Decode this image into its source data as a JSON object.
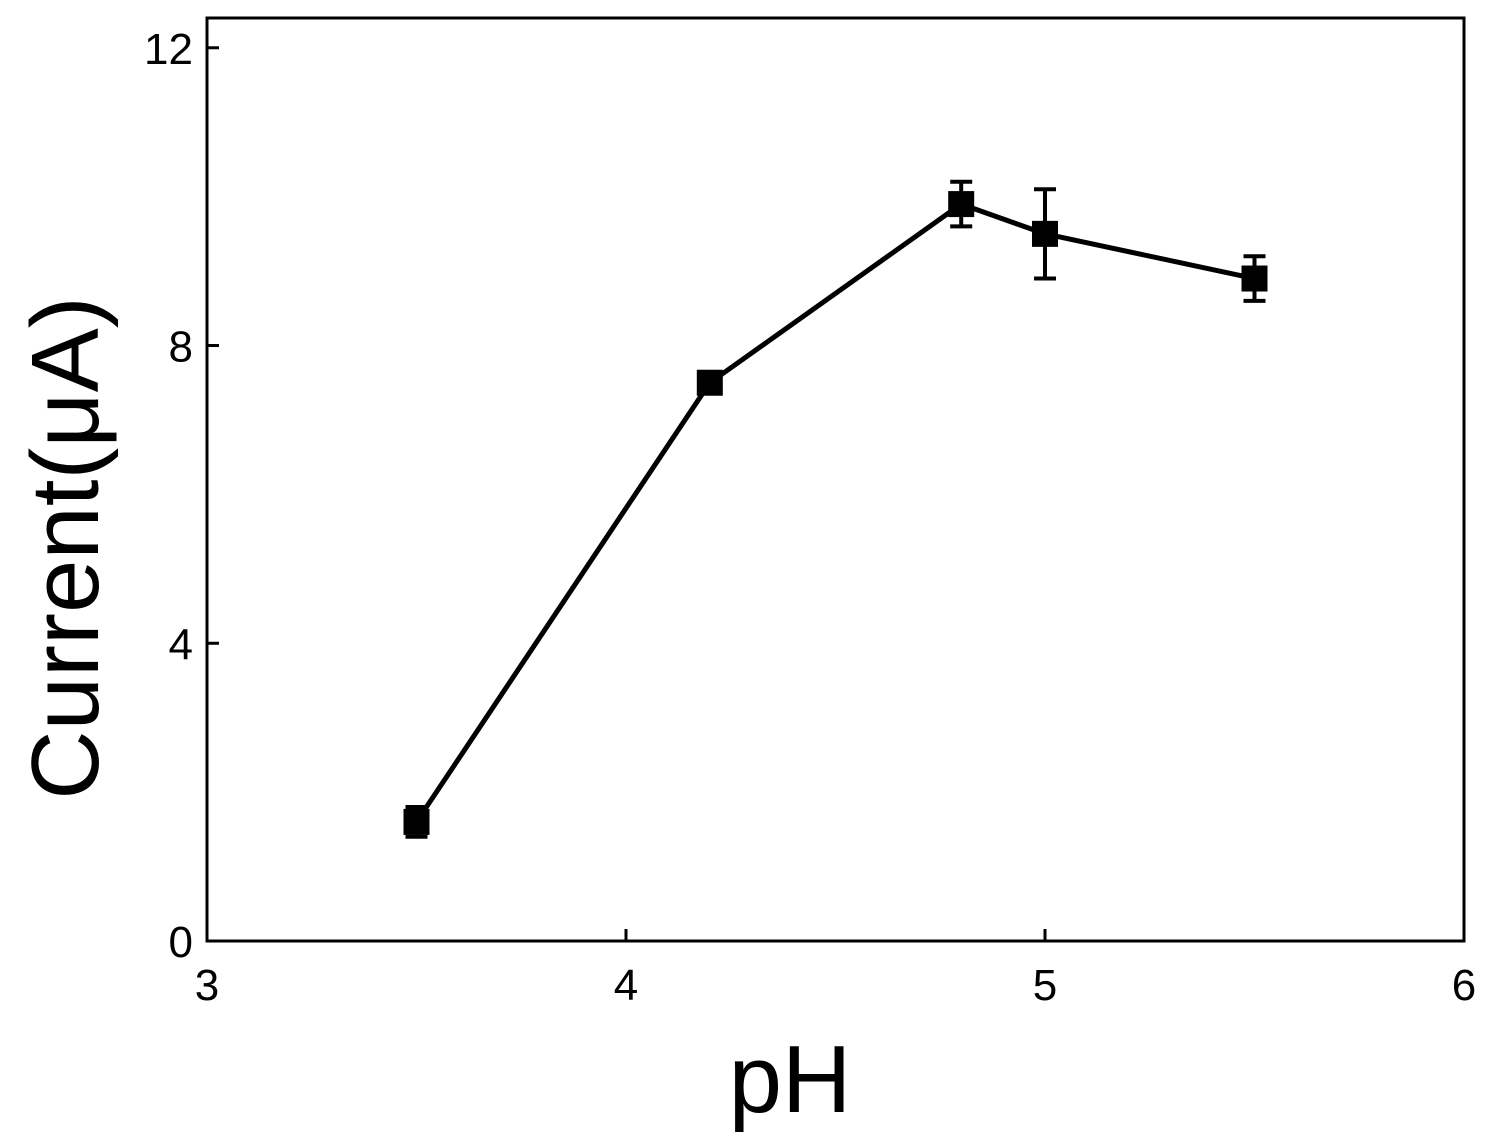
{
  "chart_data": {
    "type": "line",
    "title": "",
    "xlabel": "pH",
    "ylabel": "Current(μA)",
    "xlim": [
      3,
      6
    ],
    "ylim": [
      0,
      12.4
    ],
    "x_ticks": [
      3,
      4,
      5,
      6
    ],
    "y_ticks": [
      0,
      4,
      8,
      12
    ],
    "x_tick_labels": [
      "3",
      "4",
      "5",
      "6"
    ],
    "y_tick_labels": [
      "0",
      "4",
      "8",
      "12"
    ],
    "grid": false,
    "legend": "none",
    "marker": "square",
    "color": "#000000",
    "series": [
      {
        "x": [
          3.5,
          4.2,
          4.8,
          5.0,
          5.5
        ],
        "y": [
          1.6,
          7.5,
          9.9,
          9.5,
          8.9
        ],
        "error": [
          0.2,
          0.1,
          0.3,
          0.6,
          0.3
        ]
      }
    ]
  }
}
